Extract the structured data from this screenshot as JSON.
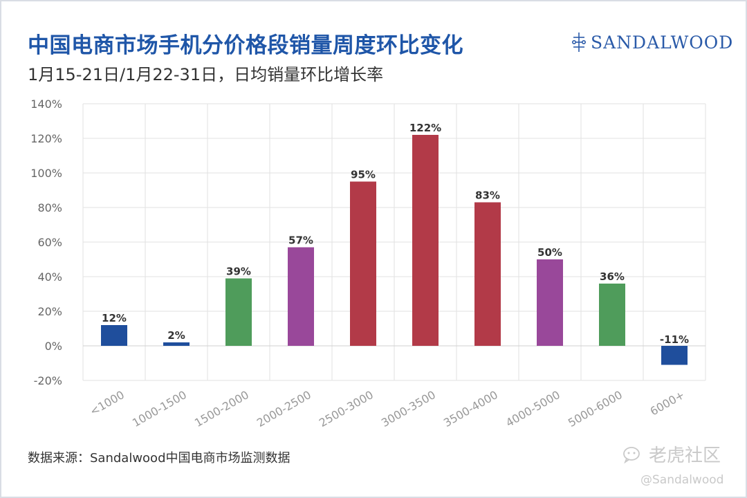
{
  "header": {
    "title": "中国电商市场手机分价格段销量周度环比变化",
    "subtitle": "1月15-21日/1月22-31日，日均销量环比增长率",
    "logo_text": "SANDALWOOD"
  },
  "footer": {
    "source": "数据来源：Sandalwood中国电商市场监测数据",
    "watermark_text": "老虎社区",
    "watermark_handle": "@Sandalwood"
  },
  "chart_data": {
    "type": "bar",
    "categories": [
      "<1000",
      "1000-1500",
      "1500-2000",
      "2000-2500",
      "2500-3000",
      "3000-3500",
      "3500-4000",
      "4000-5000",
      "5000-6000",
      "6000+"
    ],
    "values": [
      12,
      2,
      39,
      57,
      95,
      122,
      83,
      50,
      36,
      -11
    ],
    "data_labels": [
      "12%",
      "2%",
      "39%",
      "57%",
      "95%",
      "122%",
      "83%",
      "50%",
      "36%",
      "-11%"
    ],
    "bar_colors": [
      "#1f4e9c",
      "#1f4e9c",
      "#4f9c5b",
      "#99489a",
      "#b23a48",
      "#b23a48",
      "#b23a48",
      "#99489a",
      "#4f9c5b",
      "#1f4e9c"
    ],
    "ylim": [
      -20,
      140
    ],
    "yticks": [
      -20,
      0,
      20,
      40,
      60,
      80,
      100,
      120,
      140
    ],
    "ytick_labels": [
      "-20%",
      "0%",
      "20%",
      "40%",
      "60%",
      "80%",
      "100%",
      "120%",
      "140%"
    ],
    "grid": true,
    "legend": "none"
  }
}
